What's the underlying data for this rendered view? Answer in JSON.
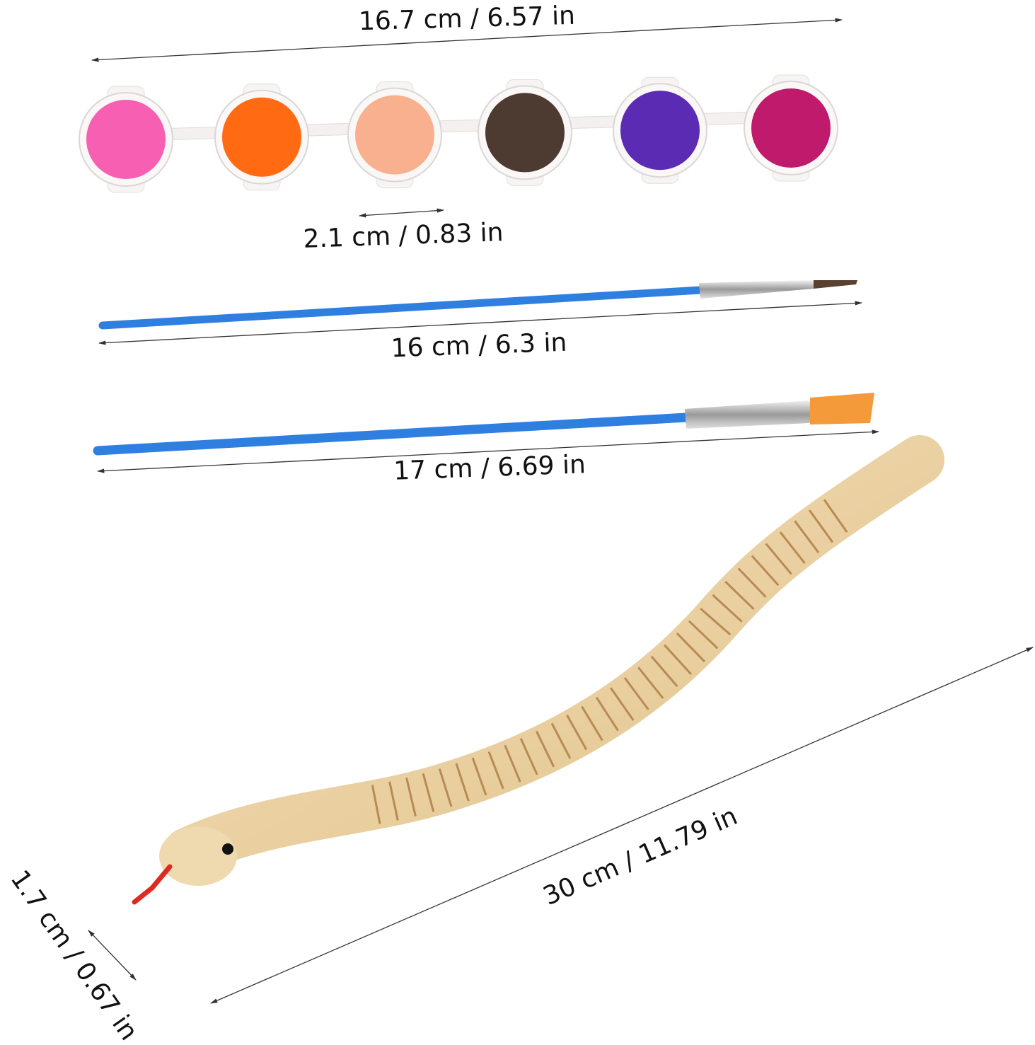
{
  "dimensions": {
    "paint_strip_length": "16.7 cm / 6.57 in",
    "paint_pot_diameter": "2.1 cm / 0.83 in",
    "small_brush_length": "16 cm / 6.3 in",
    "flat_brush_length": "17 cm / 6.69 in",
    "snake_length": "30 cm / 11.79 in",
    "snake_width": "1.7 cm / 0.67 in"
  },
  "paint_colors": [
    "#f760b2",
    "#ff6a12",
    "#f8b08e",
    "#4d3a30",
    "#5b2bb3",
    "#c01a6c"
  ],
  "brush_handle_color": "#2f7fe0",
  "flat_brush_bristle_color": "#f59a3a",
  "snake_wood_color": "#ecd3a4",
  "snake_tongue_color": "#e02a20"
}
